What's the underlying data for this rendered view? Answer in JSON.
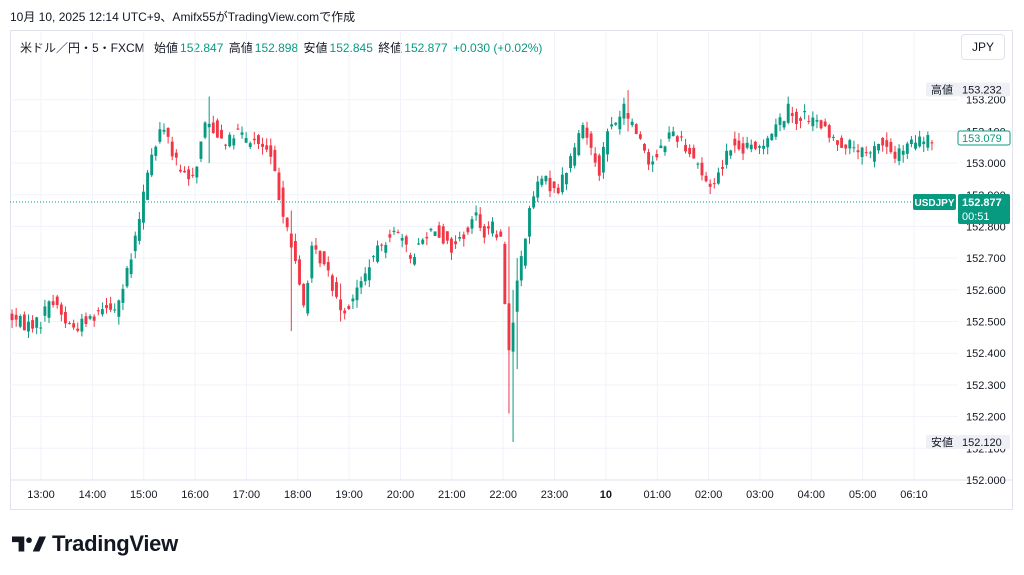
{
  "header": {
    "caption": "10月 10, 2025 12:14 UTC+9、Amifx55がTradingView.comで作成"
  },
  "legend": {
    "symbol": "米ドル／円・5・FXCM",
    "open_label": "始値",
    "open_value": "152.847",
    "high_label": "高値",
    "high_value": "152.898",
    "low_label": "安値",
    "low_value": "152.845",
    "close_label": "終値",
    "close_value": "152.877",
    "change": "+0.030 (+0.02%)"
  },
  "currency_button": "JPY",
  "brand": {
    "name": "TradingView"
  },
  "colors": {
    "up": "#089981",
    "down": "#f23645",
    "grid": "#f0f3fa",
    "axis_text": "#131722"
  },
  "chart_data": {
    "type": "candlestick",
    "symbol": "USDJPY",
    "interval": "5",
    "ylim": [
      152.0,
      153.3
    ],
    "yticks": [
      152.0,
      152.1,
      152.2,
      152.3,
      152.4,
      152.5,
      152.6,
      152.7,
      152.8,
      152.9,
      153.0,
      153.1,
      153.2
    ],
    "ytick_labels": [
      "152.000",
      "152.100",
      "152.200",
      "152.300",
      "152.400",
      "152.500",
      "152.600",
      "152.700",
      "152.800",
      "152.900",
      "153.000",
      "153.100",
      "153.200"
    ],
    "xticks": [
      {
        "label": "13:00",
        "bold": false
      },
      {
        "label": "14:00",
        "bold": false
      },
      {
        "label": "15:00",
        "bold": false
      },
      {
        "label": "16:00",
        "bold": false
      },
      {
        "label": "17:00",
        "bold": false
      },
      {
        "label": "18:00",
        "bold": false
      },
      {
        "label": "19:00",
        "bold": false
      },
      {
        "label": "20:00",
        "bold": false
      },
      {
        "label": "21:00",
        "bold": false
      },
      {
        "label": "22:00",
        "bold": false
      },
      {
        "label": "23:00",
        "bold": false
      },
      {
        "label": "10",
        "bold": true
      },
      {
        "label": "01:00",
        "bold": false
      },
      {
        "label": "02:00",
        "bold": false
      },
      {
        "label": "03:00",
        "bold": false
      },
      {
        "label": "04:00",
        "bold": false
      },
      {
        "label": "05:00",
        "bold": false
      },
      {
        "label": "06:10",
        "bold": false
      }
    ],
    "anchors": [
      [
        0,
        152.52
      ],
      [
        4,
        152.49
      ],
      [
        8,
        152.5
      ],
      [
        10,
        152.57
      ],
      [
        12,
        152.55
      ],
      [
        14,
        152.5
      ],
      [
        16,
        152.48
      ],
      [
        20,
        152.51
      ],
      [
        24,
        152.56
      ],
      [
        26,
        152.54
      ],
      [
        28,
        152.6
      ],
      [
        30,
        152.7
      ],
      [
        32,
        152.82
      ],
      [
        34,
        152.98
      ],
      [
        36,
        153.06
      ],
      [
        38,
        153.12
      ],
      [
        40,
        153.03
      ],
      [
        42,
        152.97
      ],
      [
        44,
        152.95
      ],
      [
        46,
        153.0
      ],
      [
        48,
        153.13
      ],
      [
        50,
        153.11
      ],
      [
        52,
        153.08
      ],
      [
        54,
        153.07
      ],
      [
        56,
        153.1
      ],
      [
        58,
        153.07
      ],
      [
        60,
        153.07
      ],
      [
        62,
        153.05
      ],
      [
        64,
        153.02
      ],
      [
        66,
        152.9
      ],
      [
        68,
        152.8
      ],
      [
        70,
        152.68
      ],
      [
        72,
        152.55
      ],
      [
        74,
        152.72
      ],
      [
        76,
        152.7
      ],
      [
        78,
        152.65
      ],
      [
        80,
        152.58
      ],
      [
        82,
        152.53
      ],
      [
        84,
        152.58
      ],
      [
        86,
        152.62
      ],
      [
        88,
        152.68
      ],
      [
        90,
        152.72
      ],
      [
        92,
        152.76
      ],
      [
        94,
        152.8
      ],
      [
        96,
        152.75
      ],
      [
        98,
        152.7
      ],
      [
        100,
        152.74
      ],
      [
        102,
        152.78
      ],
      [
        104,
        152.8
      ],
      [
        106,
        152.76
      ],
      [
        108,
        152.73
      ],
      [
        110,
        152.76
      ],
      [
        112,
        152.79
      ],
      [
        114,
        152.84
      ],
      [
        116,
        152.78
      ],
      [
        118,
        152.8
      ],
      [
        120,
        152.75
      ],
      [
        122,
        152.4
      ],
      [
        124,
        152.62
      ],
      [
        126,
        152.78
      ],
      [
        128,
        152.9
      ],
      [
        130,
        152.95
      ],
      [
        132,
        152.93
      ],
      [
        134,
        152.92
      ],
      [
        136,
        152.98
      ],
      [
        138,
        153.05
      ],
      [
        140,
        153.12
      ],
      [
        142,
        153.05
      ],
      [
        144,
        152.98
      ],
      [
        146,
        153.1
      ],
      [
        148,
        153.13
      ],
      [
        150,
        153.17
      ],
      [
        152,
        153.12
      ],
      [
        154,
        153.08
      ],
      [
        156,
        153.0
      ],
      [
        158,
        153.03
      ],
      [
        160,
        153.07
      ],
      [
        162,
        153.1
      ],
      [
        164,
        153.07
      ],
      [
        166,
        153.04
      ],
      [
        168,
        153.0
      ],
      [
        170,
        152.93
      ],
      [
        172,
        152.94
      ],
      [
        174,
        153.0
      ],
      [
        176,
        153.06
      ],
      [
        178,
        153.04
      ],
      [
        180,
        153.05
      ],
      [
        182,
        153.04
      ],
      [
        184,
        153.07
      ],
      [
        186,
        153.1
      ],
      [
        188,
        153.13
      ],
      [
        190,
        153.17
      ],
      [
        192,
        153.14
      ],
      [
        194,
        153.15
      ],
      [
        196,
        153.13
      ],
      [
        198,
        153.12
      ],
      [
        200,
        153.08
      ],
      [
        202,
        153.07
      ],
      [
        204,
        153.06
      ],
      [
        206,
        153.05
      ],
      [
        208,
        153.03
      ],
      [
        210,
        153.02
      ],
      [
        212,
        153.07
      ],
      [
        214,
        153.05
      ],
      [
        216,
        153.02
      ],
      [
        218,
        153.04
      ],
      [
        220,
        153.06
      ],
      [
        222,
        153.07
      ],
      [
        224,
        153.07
      ]
    ],
    "spikes": [
      {
        "index": 48,
        "low": 153.0,
        "high": 153.21
      },
      {
        "index": 121,
        "low": 152.21,
        "high": 152.8
      },
      {
        "index": 122,
        "low": 152.12,
        "high": 152.6
      },
      {
        "index": 123,
        "low": 152.35,
        "high": 152.7
      },
      {
        "index": 150,
        "low": 153.1,
        "high": 153.23
      },
      {
        "index": 68,
        "low": 152.47,
        "high": 152.85
      },
      {
        "index": 80,
        "low": 152.5,
        "high": 152.62
      }
    ],
    "high_label": "高値",
    "high_value": "153.232",
    "low_label": "安値",
    "low_value": "152.120",
    "last_close_mark": "153.079",
    "current_symbol_tag": "USDJPY",
    "current_price": "152.877",
    "countdown": "00:51"
  }
}
